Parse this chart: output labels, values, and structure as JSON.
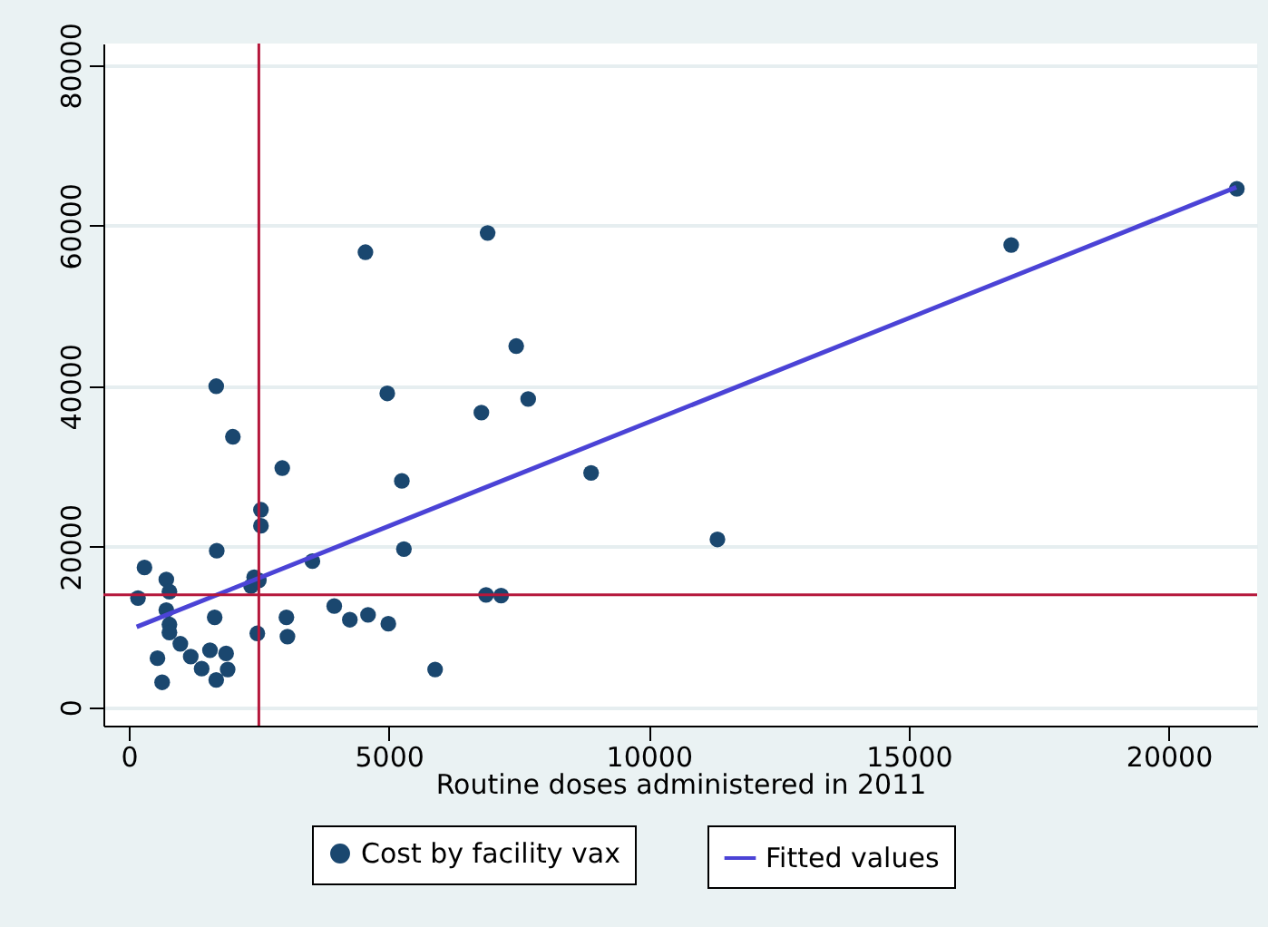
{
  "chart_data": {
    "type": "scatter",
    "xlabel": "Routine doses administered in 2011",
    "xlim": [
      -490,
      21700
    ],
    "ylim": [
      -2300,
      82700
    ],
    "xticks": [
      0,
      5000,
      10000,
      15000,
      20000
    ],
    "yticks": [
      0,
      20000,
      40000,
      60000,
      80000
    ],
    "grid": "y",
    "legend": "bottom",
    "series": [
      {
        "name": "Cost by facility vax",
        "marker": "circle",
        "color": "#1a476f",
        "x": [
          2950,
          5250,
          2540,
          2540,
          1690,
          5290,
          300,
          3530,
          720,
          780,
          175,
          2410,
          2350,
          2500,
          720,
          1650,
          780,
          3030,
          3950,
          4250,
          4600,
          4990,
          780,
          990,
          2470,
          3050,
          550,
          1190,
          1560,
          1870,
          1400,
          1900,
          1680,
          640,
          5890,
          4550,
          6900,
          7450,
          4970,
          7680,
          6780,
          8890,
          11320,
          6870,
          7160,
          1680,
          2000,
          16970,
          21310
        ],
        "values": [
          29800,
          28200,
          24600,
          22600,
          19500,
          19700,
          17400,
          18200,
          15900,
          14400,
          13600,
          16200,
          15100,
          15800,
          12100,
          11200,
          10300,
          11200,
          12600,
          10900,
          11500,
          10400,
          9300,
          7900,
          9200,
          8800,
          6100,
          6300,
          7100,
          6700,
          4800,
          4700,
          3400,
          3100,
          4700,
          56700,
          59100,
          45000,
          39100,
          38400,
          36700,
          29200,
          20900,
          14000,
          13900,
          40000,
          33700,
          57600,
          64600
        ]
      },
      {
        "name": "Fitted values",
        "type": "line",
        "color": "#4b43d6",
        "x": [
          150,
          21300
        ],
        "values": [
          10000,
          64800
        ]
      }
    ],
    "ref_lines": [
      {
        "axis": "x",
        "value": 2500,
        "color": "#b5173b"
      },
      {
        "axis": "y",
        "value": 14000,
        "color": "#b5173b"
      }
    ]
  }
}
